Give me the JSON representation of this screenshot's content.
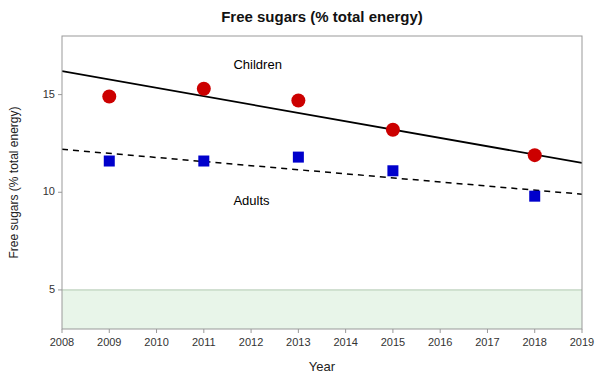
{
  "chart_data": {
    "type": "scatter",
    "title": "Free sugars (% total energy)",
    "x_label": "Year",
    "y_label": "Free sugars (% total energy)",
    "xlim": [
      2008,
      2019
    ],
    "ylim": [
      3,
      18
    ],
    "xticks": [
      2008,
      2009,
      2010,
      2011,
      2012,
      2013,
      2014,
      2015,
      2016,
      2017,
      2018,
      2019
    ],
    "yticks": [
      5,
      10,
      15
    ],
    "grid": false,
    "threshold": {
      "y": 5,
      "color": "#e8f5e9",
      "line_color": "#b0c8b0"
    },
    "series": [
      {
        "type": "scatter",
        "color": "#cc0000",
        "marker": "circle",
        "x": [
          2009,
          2011,
          2013,
          2015,
          2018
        ],
        "values": [
          14.9,
          15.3,
          14.7,
          13.2,
          11.9
        ]
      },
      {
        "type": "scatter",
        "color": "#0000cc",
        "marker": "square",
        "x": [
          2009,
          2011,
          2013,
          2015,
          2018
        ],
        "values": [
          11.6,
          11.6,
          11.8,
          11.1,
          9.8
        ]
      },
      {
        "type": "line",
        "color": "#000000",
        "line_style": "solid",
        "x": [
          2008,
          2019
        ],
        "values": [
          16.2,
          11.5
        ]
      },
      {
        "type": "line",
        "color": "#000000",
        "line_style": "dashed",
        "x": [
          2008,
          2019
        ],
        "values": [
          12.2,
          9.9
        ]
      }
    ],
    "annotations": [
      {
        "text": "Children",
        "x": 2011.5,
        "y": 16.5,
        "color": "#000000"
      },
      {
        "text": "Adults",
        "x": 2011.5,
        "y": 9.5,
        "color": "#000000"
      }
    ]
  }
}
